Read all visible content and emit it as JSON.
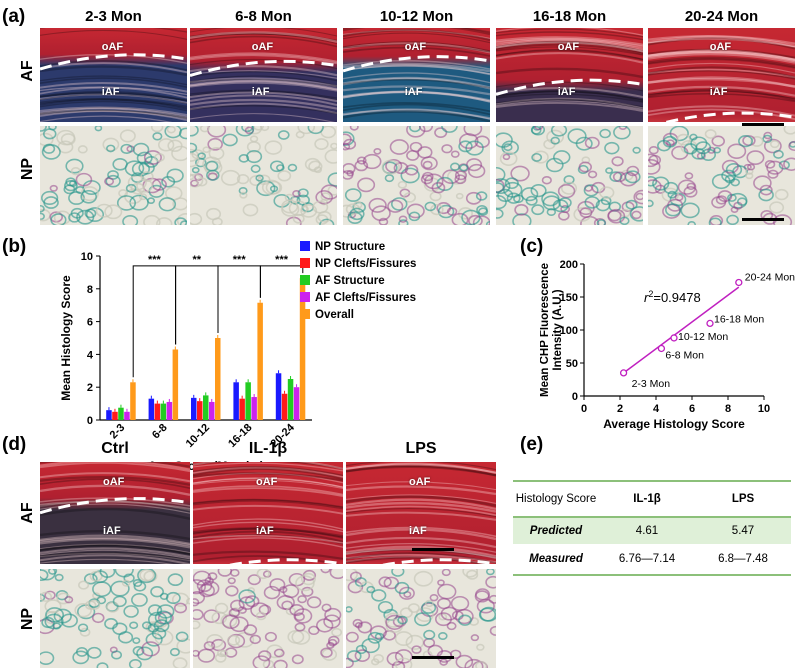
{
  "panels": {
    "a": "(a)",
    "b": "(b)",
    "c": "(c)",
    "d": "(d)",
    "e": "(e)"
  },
  "panel_a": {
    "columns": [
      "2-3 Mon",
      "6-8 Mon",
      "10-12 Mon",
      "16-18 Mon",
      "20-24 Mon"
    ],
    "rows": [
      "AF",
      "NP"
    ],
    "oaf": "oAF",
    "iaf": "iAF",
    "colors": {
      "af_red": "#b8262f",
      "af_blue": "#2a3a6a",
      "np_green": "#4fa49a",
      "np_purple": "#7a4a8a"
    }
  },
  "panel_d": {
    "columns": [
      "Ctrl",
      "IL-1β",
      "LPS"
    ],
    "rows": [
      "AF",
      "NP"
    ],
    "oaf": "oAF",
    "iaf": "iAF"
  },
  "panel_e": {
    "header": [
      "Histology Score",
      "IL-1β",
      "LPS"
    ],
    "rows": [
      {
        "label": "Predicted",
        "il1b": "4.61",
        "lps": "5.47"
      },
      {
        "label": "Measured",
        "il1b": "6.76—7.14",
        "lps": "6.8—7.48"
      }
    ],
    "highlight_color": "#dff0d8",
    "rule_color": "#8cc07a"
  },
  "chart_data": [
    {
      "type": "bar",
      "panel": "b",
      "categories": [
        "2-3",
        "6-8",
        "10-12",
        "16-18",
        "20-24"
      ],
      "series": [
        {
          "name": "NP Structure",
          "color": "#1a1aff",
          "values": [
            0.6,
            1.3,
            1.35,
            2.3,
            2.85
          ]
        },
        {
          "name": "NP Clefts/Fissures",
          "color": "#ff1a1a",
          "values": [
            0.5,
            1.0,
            1.15,
            1.3,
            1.6
          ]
        },
        {
          "name": "AF Structure",
          "color": "#22cc22",
          "values": [
            0.75,
            1.0,
            1.5,
            2.3,
            2.5
          ]
        },
        {
          "name": "AF Clefts/Fissures",
          "color": "#cc22ee",
          "values": [
            0.5,
            1.1,
            1.1,
            1.4,
            2.0
          ]
        },
        {
          "name": "Overall",
          "color": "#ff9a1a",
          "values": [
            2.3,
            4.3,
            5.0,
            7.15,
            8.65
          ]
        }
      ],
      "ylabel": "Mean Histology Score",
      "xlabel": "Age Group (Months)",
      "ylim": [
        0,
        10
      ],
      "yticks": [
        0,
        2,
        4,
        6,
        8,
        10
      ],
      "significance": [
        "***",
        "**",
        "***",
        "***"
      ]
    },
    {
      "type": "scatter",
      "panel": "c",
      "xlabel": "Average Histology Score",
      "ylabel": "Mean CHP Fluorescence Intensity (A.U.)",
      "xlim": [
        0,
        10
      ],
      "ylim": [
        0,
        200
      ],
      "xticks": [
        0,
        2,
        4,
        6,
        8,
        10
      ],
      "yticks": [
        0,
        50,
        100,
        150,
        200
      ],
      "points": [
        {
          "label": "2-3 Mon",
          "x": 2.2,
          "y": 35
        },
        {
          "label": "6-8 Mon",
          "x": 4.3,
          "y": 72
        },
        {
          "label": "10-12 Mon",
          "x": 5.0,
          "y": 88
        },
        {
          "label": "16-18 Mon",
          "x": 7.0,
          "y": 110
        },
        {
          "label": "20-24 Mon",
          "x": 8.6,
          "y": 172
        }
      ],
      "fit_line": {
        "x": [
          2.2,
          8.6
        ],
        "y": [
          35,
          165
        ]
      },
      "annotation_prefix": "r",
      "annotation_sup": "2",
      "annotation_value": "=0.9478",
      "color": "#c020c0"
    }
  ]
}
